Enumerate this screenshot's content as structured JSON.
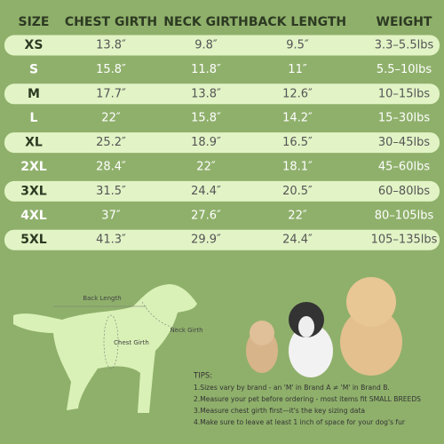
{
  "table": {
    "header": [
      "SIZE",
      "CHEST GIRTH",
      "NECK GIRTH",
      "BACK LENGTH",
      "WEIGHT"
    ],
    "rows": [
      [
        "XS",
        "13.8″",
        "9.8″",
        "9.5″",
        "3.3–5.5lbs"
      ],
      [
        "S",
        "15.8″",
        "11.8″",
        "11″",
        "5.5–10lbs"
      ],
      [
        "M",
        "17.7″",
        "13.8″",
        "12.6″",
        "10–15lbs"
      ],
      [
        "L",
        "22″",
        "15.8″",
        "14.2″",
        "15–30lbs"
      ],
      [
        "XL",
        "25.2″",
        "18.9″",
        "16.5″",
        "30–45lbs"
      ],
      [
        "2XL",
        "28.4″",
        "22″",
        "18.1″",
        "45–60lbs"
      ],
      [
        "3XL",
        "31.5″",
        "24.4″",
        "20.5″",
        "60–80lbs"
      ],
      [
        "4XL",
        "37″",
        "27.6″",
        "22″",
        "80–105lbs"
      ],
      [
        "5XL",
        "41.3″",
        "29.9″",
        "24.4″",
        "105–135lbs"
      ]
    ]
  },
  "diagram": {
    "back_length": "Back Length",
    "neck_girth": "Neck Girth",
    "chest_girth": "Chest Girth"
  },
  "tips": {
    "title": "TIPS:",
    "items": [
      "1.Sizes vary by brand - an 'M' in Brand A ≠ 'M' in Brand B.",
      "2.Measure your pet before ordering - most items fit SMALL BREEDS",
      "3.Measure chest girth first—it's the key sizing data",
      "4.Make sure to leave at least 1 inch of space for your dog's fur"
    ]
  }
}
